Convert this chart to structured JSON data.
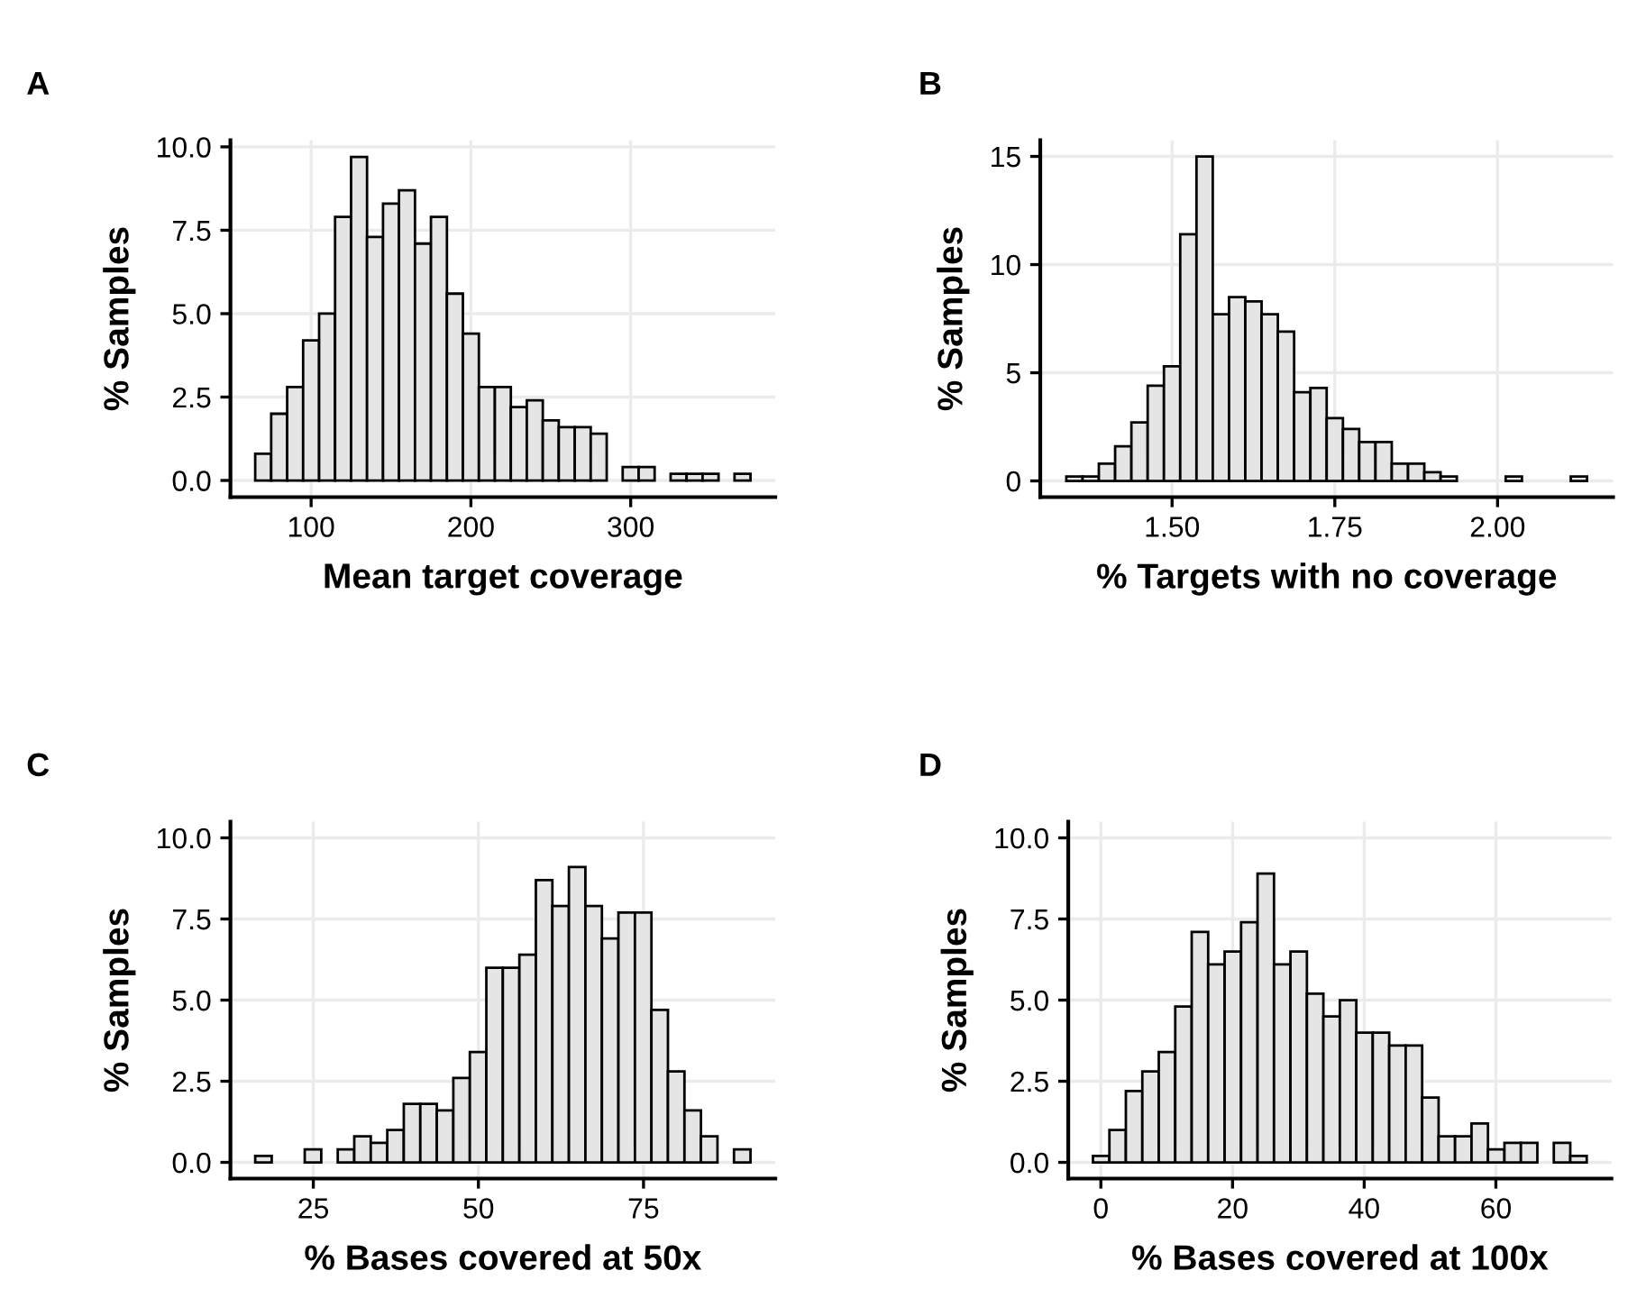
{
  "chart_data": [
    {
      "type": "histogram",
      "title": "A",
      "xlabel": "Mean target coverage",
      "ylabel": "% Samples",
      "color": "#e5e5e5",
      "bins": [
        65,
        75,
        85,
        95,
        105,
        115,
        125,
        135,
        145,
        155,
        165,
        175,
        185,
        195,
        205,
        215,
        225,
        235,
        245,
        255,
        265,
        275,
        285,
        295,
        305,
        315,
        325,
        335,
        345,
        355,
        365,
        375
      ],
      "values": [
        0.8,
        2.0,
        2.8,
        4.2,
        5.0,
        7.9,
        9.7,
        7.3,
        8.3,
        8.7,
        7.1,
        7.9,
        5.6,
        4.4,
        2.8,
        2.8,
        2.2,
        2.4,
        1.8,
        1.6,
        1.6,
        1.4,
        0,
        0.4,
        0.4,
        0,
        0.2,
        0.2,
        0.2,
        0,
        0.2
      ],
      "xlim": [
        49.5,
        390.5
      ],
      "xticks": [
        100,
        200,
        300
      ],
      "ylim": [
        -0.5,
        10.2
      ],
      "yticks": [
        {
          "value": 0,
          "label": "0.0"
        },
        {
          "value": 2.5,
          "label": "2.5"
        },
        {
          "value": 5,
          "label": "5.0"
        },
        {
          "value": 7.5,
          "label": "7.5"
        },
        {
          "value": 10,
          "label": "10.0"
        }
      ],
      "grid": true
    },
    {
      "type": "histogram",
      "title": "B",
      "xlabel": "% Targets with no coverage",
      "ylabel": "% Samples",
      "color": "#e5e5e5",
      "bins": [
        1.3375,
        1.3625,
        1.3875,
        1.4125,
        1.4375,
        1.4625,
        1.4875,
        1.5125,
        1.5375,
        1.5625,
        1.5875,
        1.6125,
        1.6375,
        1.6625,
        1.6875,
        1.7125,
        1.7375,
        1.7625,
        1.7875,
        1.8125,
        1.8375,
        1.8625,
        1.8875,
        1.9125,
        1.9375,
        1.9625,
        1.9875,
        2.0125,
        2.0375,
        2.0625,
        2.0875,
        2.1125,
        2.1375
      ],
      "values": [
        0.2,
        0.2,
        0.8,
        1.6,
        2.7,
        4.4,
        5.3,
        11.4,
        15.0,
        7.7,
        8.5,
        8.3,
        7.7,
        6.9,
        4.1,
        4.3,
        2.9,
        2.4,
        1.8,
        1.8,
        0.8,
        0.8,
        0.4,
        0.2,
        0,
        0,
        0,
        0.2,
        0,
        0,
        0,
        0.2
      ],
      "xlim": [
        1.2975,
        2.1775
      ],
      "xticks": [
        {
          "value": 1.5,
          "label": "1.50"
        },
        {
          "value": 1.75,
          "label": "1.75"
        },
        {
          "value": 2.0,
          "label": "2.00"
        }
      ],
      "ylim": [
        -0.75,
        15.75
      ],
      "yticks": [
        0,
        5,
        10,
        15
      ],
      "grid": true
    },
    {
      "type": "histogram",
      "title": "C",
      "xlabel": "% Bases covered at 50x",
      "ylabel": "% Samples",
      "color": "#e5e5e5",
      "bins": [
        16.2,
        18.7,
        21.2,
        23.7,
        26.2,
        28.7,
        31.2,
        33.7,
        36.2,
        38.7,
        41.2,
        43.7,
        46.2,
        48.7,
        51.2,
        53.7,
        56.2,
        58.7,
        61.2,
        63.7,
        66.2,
        68.7,
        71.2,
        73.7,
        76.2,
        78.7,
        81.2,
        83.7,
        86.2,
        88.7,
        91.2
      ],
      "values": [
        0.2,
        0,
        0,
        0.4,
        0,
        0.4,
        0.8,
        0.6,
        1.0,
        1.8,
        1.8,
        1.6,
        2.6,
        3.4,
        6.0,
        6.0,
        6.4,
        8.7,
        7.9,
        9.1,
        7.9,
        6.9,
        7.7,
        7.7,
        4.7,
        2.8,
        1.6,
        0.8,
        0,
        0.4
      ],
      "xlim": [
        12.45,
        94.95
      ],
      "xticks": [
        25,
        50,
        75
      ],
      "ylim": [
        -0.5,
        10.5
      ],
      "yticks": [
        {
          "value": 0,
          "label": "0.0"
        },
        {
          "value": 2.5,
          "label": "2.5"
        },
        {
          "value": 5,
          "label": "5.0"
        },
        {
          "value": 7.5,
          "label": "7.5"
        },
        {
          "value": 10,
          "label": "10.0"
        }
      ],
      "grid": true
    },
    {
      "type": "histogram",
      "title": "D",
      "xlabel": "% Bases covered at 100x",
      "ylabel": "% Samples",
      "color": "#e5e5e5",
      "bins": [
        -1.2,
        1.3,
        3.8,
        6.3,
        8.8,
        11.3,
        13.8,
        16.3,
        18.8,
        21.3,
        23.8,
        26.3,
        28.8,
        31.3,
        33.8,
        36.3,
        38.8,
        41.3,
        43.8,
        46.3,
        48.8,
        51.3,
        53.8,
        56.3,
        58.8,
        61.3,
        63.8,
        66.3,
        68.8,
        71.3,
        73.8
      ],
      "values": [
        0.2,
        1.0,
        2.2,
        2.8,
        3.4,
        4.8,
        7.1,
        6.1,
        6.5,
        7.4,
        8.9,
        6.1,
        6.5,
        5.2,
        4.5,
        5.0,
        4.0,
        4.0,
        3.6,
        3.6,
        2.0,
        0.8,
        0.8,
        1.2,
        0.4,
        0.6,
        0.6,
        0,
        0.6,
        0.2
      ],
      "xlim": [
        -4.95,
        77.55
      ],
      "xticks": [
        0,
        20,
        40,
        60
      ],
      "ylim": [
        -0.5,
        10.5
      ],
      "yticks": [
        {
          "value": 0,
          "label": "0.0"
        },
        {
          "value": 2.5,
          "label": "2.5"
        },
        {
          "value": 5,
          "label": "5.0"
        },
        {
          "value": 7.5,
          "label": "7.5"
        },
        {
          "value": 10,
          "label": "10.0"
        }
      ],
      "grid": true
    }
  ]
}
